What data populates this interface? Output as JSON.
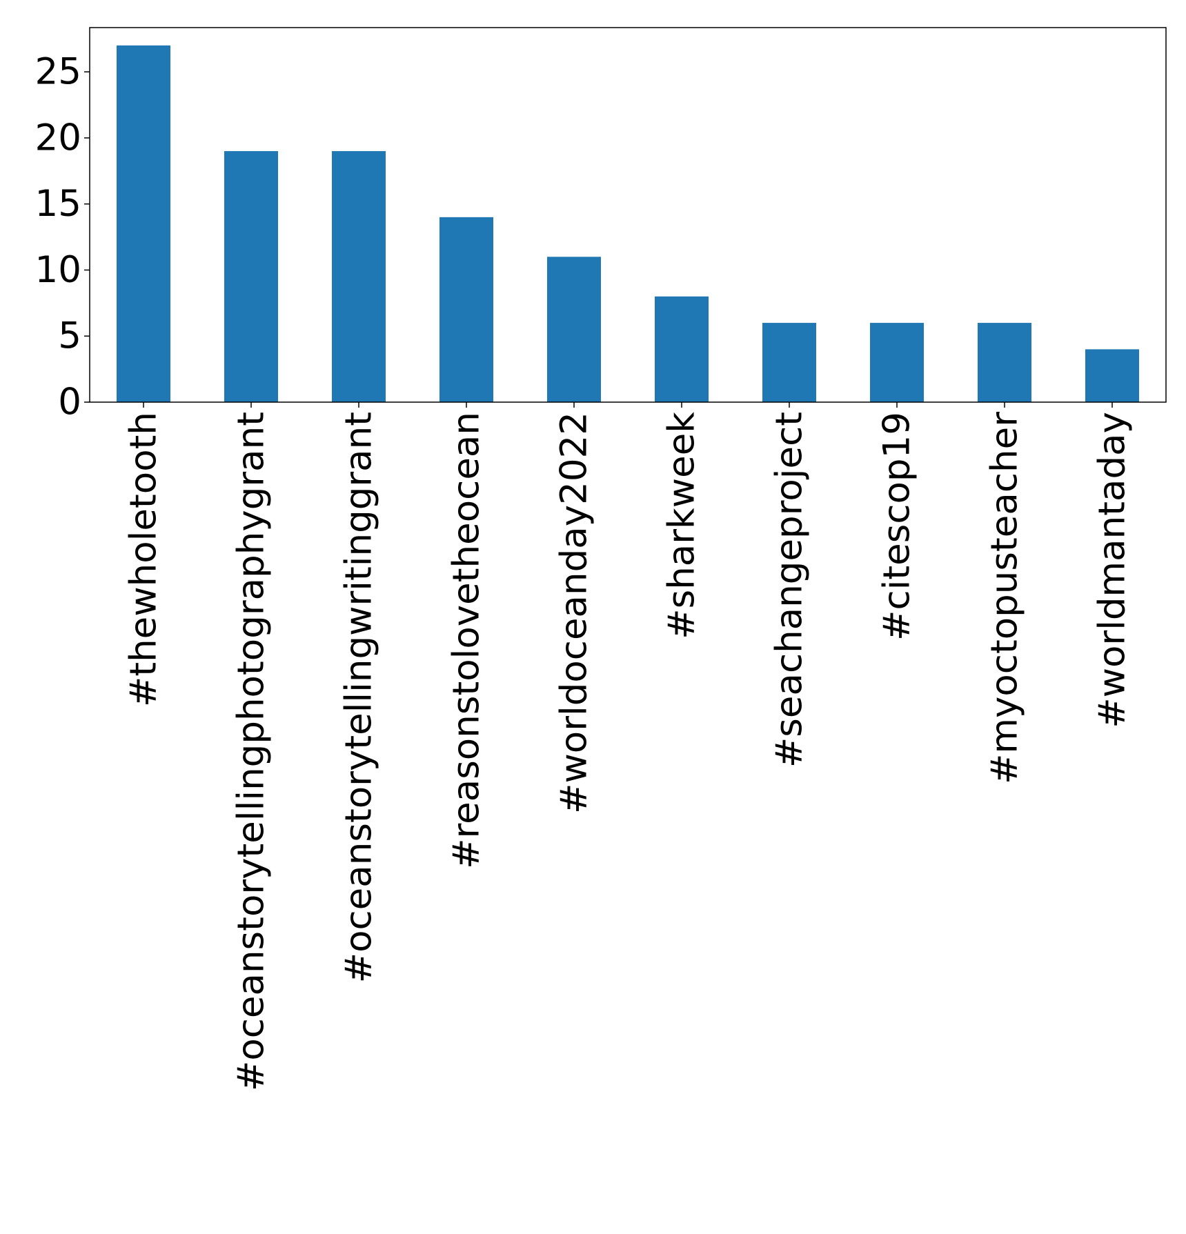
{
  "chart_data": {
    "type": "bar",
    "title": "",
    "xlabel": "",
    "ylabel": "",
    "categories": [
      "#thewholetooth",
      "#oceanstorytellingphotographygrant",
      "#oceanstorytellingwritinggrant",
      "#reasonstolovetheocean",
      "#worldoceanday2022",
      "#sharkweek",
      "#seachangeproject",
      "#citescop19",
      "#myoctopusteacher",
      "#worldmantaday"
    ],
    "values": [
      27,
      19,
      19,
      14,
      11,
      8,
      6,
      6,
      6,
      4
    ],
    "ylim": [
      0,
      28.35
    ],
    "yticks": [
      0,
      5,
      10,
      15,
      20,
      25
    ],
    "bar_color": "#1f77b4",
    "grid": false,
    "legend": "none"
  }
}
